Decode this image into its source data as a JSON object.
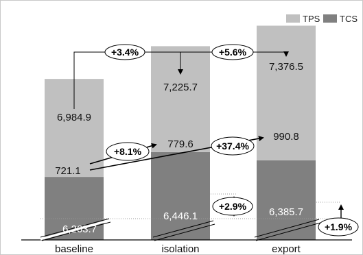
{
  "chart_data": {
    "type": "bar",
    "stacked": true,
    "categories": [
      "baseline",
      "isolation",
      "export"
    ],
    "series": [
      {
        "name": "TCS",
        "color": "#808080",
        "values": [
          6263.7,
          6446.1,
          6385.7
        ]
      },
      {
        "name": "TPS",
        "color": "#c0c0c0",
        "values": [
          721.1,
          779.6,
          990.8
        ]
      }
    ],
    "totals": [
      6984.9,
      7225.7,
      7376.5
    ],
    "total_labels": [
      "6,984.9",
      "7,225.7",
      "7,376.5"
    ],
    "tcs_labels": [
      "6,263.7",
      "6,446.1",
      "6,385.7"
    ],
    "tps_labels": [
      "721.1",
      "779.6",
      "990.8"
    ],
    "legend": {
      "position": "top-right",
      "entries": [
        "TPS",
        "TCS"
      ]
    },
    "axis_break": true,
    "y_axis_range_shown": [
      5800,
      7500
    ],
    "annotations": {
      "total_changes": [
        "+3.4%",
        "+5.6%"
      ],
      "tps_changes": [
        "+8.1%",
        "+37.4%"
      ],
      "tcs_changes": [
        "+2.9%",
        "+1.9%"
      ]
    }
  }
}
